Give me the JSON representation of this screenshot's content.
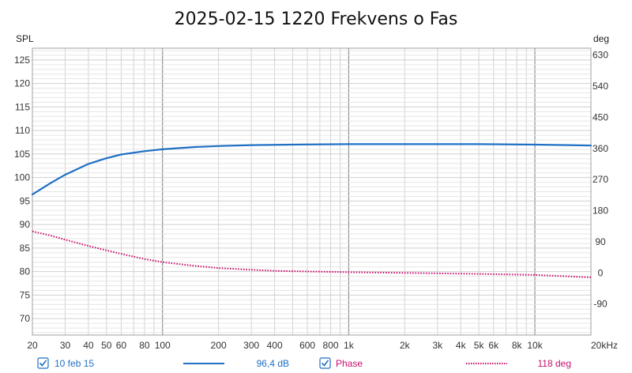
{
  "chart_data": {
    "type": "line",
    "title": "2025-02-15 1220 Frekvens o Fas",
    "x_scale": "log",
    "xlim": [
      20,
      20000
    ],
    "x_ticks": [
      {
        "value": 20,
        "label": "20"
      },
      {
        "value": 30,
        "label": "30"
      },
      {
        "value": 40,
        "label": "40"
      },
      {
        "value": 50,
        "label": "50"
      },
      {
        "value": 60,
        "label": "60"
      },
      {
        "value": 80,
        "label": "80"
      },
      {
        "value": 100,
        "label": "100"
      },
      {
        "value": 200,
        "label": "200"
      },
      {
        "value": 300,
        "label": "300"
      },
      {
        "value": 400,
        "label": "400"
      },
      {
        "value": 600,
        "label": "600"
      },
      {
        "value": 800,
        "label": "800"
      },
      {
        "value": 1000,
        "label": "1k"
      },
      {
        "value": 2000,
        "label": "2k"
      },
      {
        "value": 3000,
        "label": "3k"
      },
      {
        "value": 4000,
        "label": "4k"
      },
      {
        "value": 5000,
        "label": "5k"
      },
      {
        "value": 6000,
        "label": "6k"
      },
      {
        "value": 8000,
        "label": "8k"
      },
      {
        "value": 10000,
        "label": "10k"
      },
      {
        "value": 20000,
        "label": "20kHz"
      }
    ],
    "y_left": {
      "label": "SPL",
      "lim": [
        66.5,
        127.5
      ],
      "ticks": [
        70,
        75,
        80,
        85,
        90,
        95,
        100,
        105,
        110,
        115,
        120,
        125
      ]
    },
    "y_right": {
      "label": "deg",
      "lim": [
        -180,
        650
      ],
      "ticks": [
        -90,
        0,
        90,
        180,
        270,
        360,
        450,
        540,
        630
      ]
    },
    "grid": true,
    "legend_position": "bottom",
    "series": [
      {
        "name": "10 feb 15",
        "axis": "left",
        "color": "#1f6fc4",
        "style": "solid",
        "readout": "96,4 dB",
        "checked": true,
        "x": [
          20,
          25,
          30,
          40,
          50,
          60,
          80,
          100,
          150,
          200,
          300,
          500,
          1000,
          2000,
          5000,
          10000,
          15000,
          20000
        ],
        "y": [
          96.4,
          98.8,
          100.6,
          102.9,
          104.1,
          104.9,
          105.6,
          106.0,
          106.5,
          106.7,
          106.9,
          107.0,
          107.1,
          107.1,
          107.1,
          107.0,
          106.9,
          106.8
        ]
      },
      {
        "name": "Phase",
        "axis": "right",
        "color": "#c8106e",
        "style": "dotted",
        "readout": "118 deg",
        "checked": true,
        "x": [
          20,
          25,
          30,
          40,
          50,
          60,
          80,
          100,
          150,
          200,
          300,
          400,
          600,
          1000,
          2000,
          5000,
          10000,
          15000,
          20000
        ],
        "y": [
          120,
          108,
          96,
          78,
          65,
          55,
          40,
          31,
          20,
          14,
          9,
          6,
          4,
          2,
          0,
          -3,
          -6,
          -10,
          -13
        ]
      }
    ]
  }
}
